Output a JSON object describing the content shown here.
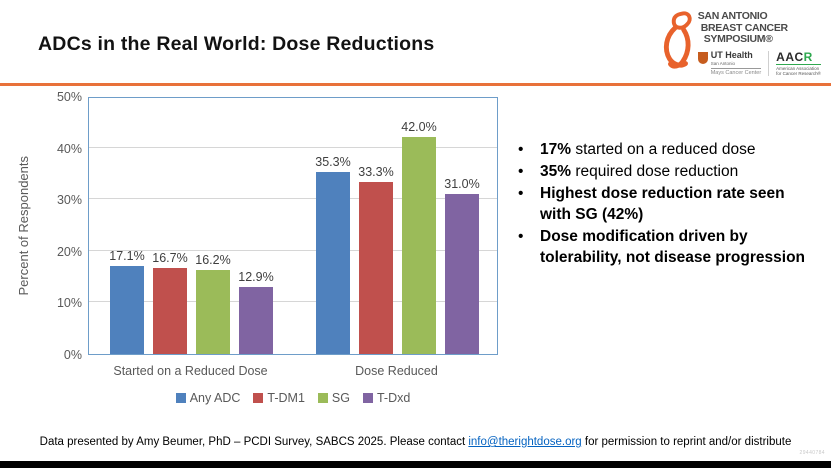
{
  "slide": {
    "title": "ADCs in the Real World: Dose Reductions",
    "watermark": "29440784"
  },
  "logo": {
    "name_line1": "SAN ANTONIO",
    "name_line2": "BREAST CANCER",
    "name_line3": "SYMPOSIUM®",
    "ut_health": {
      "name": "UT Health",
      "sub": "San Antonio",
      "center": "Mays Cancer Center"
    },
    "aacr": {
      "word_black": "AAC",
      "word_green": "R",
      "sub1": "American Association",
      "sub2": "for Cancer Research®"
    }
  },
  "bullets": [
    {
      "bold": "17%",
      "rest": " started on a reduced dose"
    },
    {
      "bold": "35%",
      "rest": " required dose reduction"
    },
    {
      "bold": "Highest dose reduction rate seen with SG (42%)",
      "rest": ""
    },
    {
      "bold": "Dose modification driven by tolerability, not disease progression",
      "rest": ""
    }
  ],
  "chart_data": {
    "type": "bar",
    "title": "",
    "xlabel": "",
    "ylabel": "Percent of Respondents",
    "ylim": [
      0,
      50
    ],
    "ytick_step": 10,
    "ytick_labels": [
      "0%",
      "10%",
      "20%",
      "30%",
      "40%",
      "50%"
    ],
    "grid": true,
    "legend_position": "bottom",
    "categories": [
      "Started on a Reduced Dose",
      "Dose Reduced"
    ],
    "series": [
      {
        "name": "Any ADC",
        "color": "#4F81BD",
        "values": [
          17.1,
          35.3
        ]
      },
      {
        "name": "T-DM1",
        "color": "#C0504D",
        "values": [
          16.7,
          33.3
        ]
      },
      {
        "name": "SG",
        "color": "#9BBB59",
        "values": [
          16.2,
          42.0
        ]
      },
      {
        "name": "T-Dxd",
        "color": "#8064A2",
        "values": [
          12.9,
          31.0
        ]
      }
    ],
    "data_labels": [
      [
        "17.1%",
        "16.7%",
        "16.2%",
        "12.9%"
      ],
      [
        "35.3%",
        "33.3%",
        "42.0%",
        "31.0%"
      ]
    ]
  },
  "footer": {
    "pre_link": "Data presented by Amy Beumer, PhD – PCDI Survey, SABCS 2025. Please contact ",
    "link": "info@therightdose.org",
    "post_link": " for permission to reprint and/or distribute"
  },
  "colors": {
    "accent_orange": "#E8713A",
    "ribbon_orange": "#E8622C",
    "plot_border_blue": "#6E9DC9",
    "gridline_gray": "#D6D6D6",
    "axis_text_gray": "#595959",
    "link_blue": "#0563C1"
  }
}
